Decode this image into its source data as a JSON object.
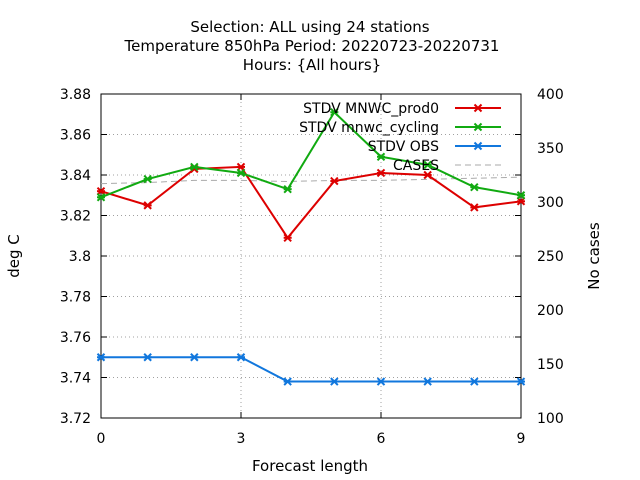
{
  "chart_data": {
    "type": "line",
    "title_lines": [
      "Selection: ALL using    24 stations",
      "Temperature 850hPa   Period: 20220723-20220731",
      "Hours: {All hours}"
    ],
    "xlabel": "Forecast length",
    "ylabel": "deg C",
    "y2label": "No cases",
    "xlim": [
      0,
      9
    ],
    "ylim": [
      3.72,
      3.88
    ],
    "y2lim": [
      100,
      400
    ],
    "xticks": [
      0,
      3,
      6,
      9
    ],
    "yticks": [
      3.72,
      3.74,
      3.76,
      3.78,
      3.8,
      3.82,
      3.84,
      3.86,
      3.88
    ],
    "y2ticks": [
      100,
      150,
      200,
      250,
      300,
      350,
      400
    ],
    "xtick_labels": [
      "0",
      "3",
      "6",
      "9"
    ],
    "ytick_labels": [
      "3.72",
      "3.74",
      "3.76",
      "3.78",
      "3.8",
      "3.82",
      "3.84",
      "3.86",
      "3.88"
    ],
    "y2tick_labels": [
      "100",
      "150",
      "200",
      "250",
      "300",
      "350",
      "400"
    ],
    "grid": true,
    "legend_position": "top-right",
    "x": [
      0,
      1,
      2,
      3,
      4,
      5,
      6,
      7,
      8,
      9
    ],
    "series": [
      {
        "name": "STDV MNWC_prod0",
        "color": "#dd0000",
        "axis": "y",
        "style": "line-points",
        "values": [
          3.832,
          3.825,
          3.843,
          3.844,
          3.809,
          3.837,
          3.841,
          3.84,
          3.824,
          3.827
        ]
      },
      {
        "name": "STDV mnwc_cycling",
        "color": "#11aa11",
        "axis": "y",
        "style": "line-points",
        "values": [
          3.829,
          3.838,
          3.844,
          3.841,
          3.833,
          3.871,
          3.849,
          3.845,
          3.834,
          3.83
        ]
      },
      {
        "name": "STDV OBS",
        "color": "#1177dd",
        "axis": "y",
        "style": "line-points",
        "values": [
          3.75,
          3.75,
          3.75,
          3.75,
          3.738,
          3.738,
          3.738,
          3.738,
          3.738,
          3.738
        ]
      },
      {
        "name": "CASES",
        "color": "#aaaaaa",
        "axis": "y2",
        "style": "dashed",
        "values": [
          317,
          318,
          320,
          320,
          319,
          320,
          320,
          321,
          322,
          323
        ]
      }
    ]
  }
}
